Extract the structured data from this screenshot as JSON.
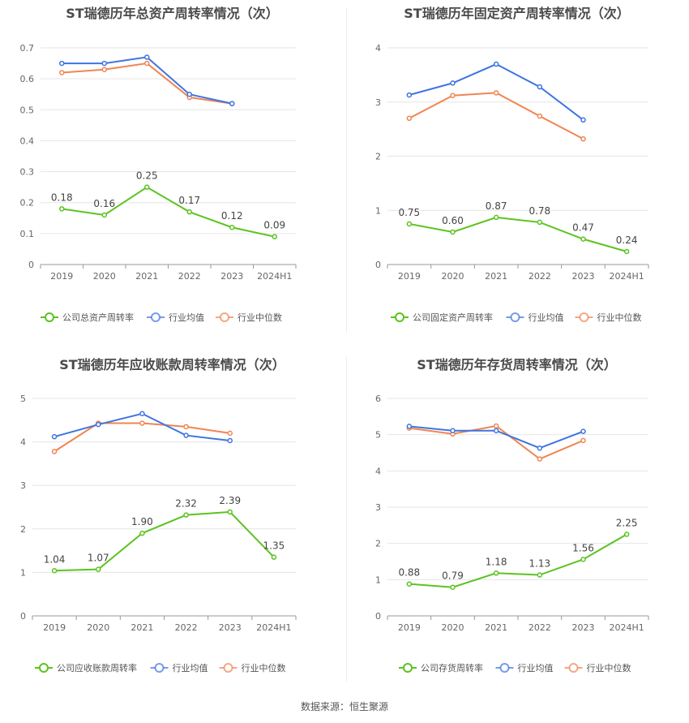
{
  "source": "数据来源：恒生聚源",
  "legend_labels": {
    "company_default": "",
    "avg": "行业均值",
    "median": "行业中位数"
  },
  "colors": {
    "company": "#5cc320",
    "avg": "#3f74e1",
    "median": "#f08552",
    "grid": "#e6e6e6",
    "axis": "#999999",
    "text": "#666666"
  },
  "chart_data": [
    {
      "type": "line",
      "title": "ST瑞德历年总资产周转率情况（次）",
      "x": [
        "2019",
        "2020",
        "2021",
        "2022",
        "2023",
        "2024H1"
      ],
      "yticks": [
        "0",
        "0.1",
        "0.2",
        "0.3",
        "0.4",
        "0.5",
        "0.6",
        "0.7"
      ],
      "ylim": [
        0,
        0.7
      ],
      "series": [
        {
          "name": "公司总资产周转率",
          "role": "company",
          "values": [
            0.18,
            0.16,
            0.25,
            0.17,
            0.12,
            0.09
          ],
          "labels": [
            "0.18",
            "0.16",
            "0.25",
            "0.17",
            "0.12",
            "0.09"
          ]
        },
        {
          "name": "行业均值",
          "role": "avg",
          "values": [
            0.65,
            0.65,
            0.67,
            0.55,
            0.52,
            null
          ]
        },
        {
          "name": "行业中位数",
          "role": "median",
          "values": [
            0.62,
            0.63,
            0.65,
            0.54,
            0.52,
            null
          ]
        }
      ]
    },
    {
      "type": "line",
      "title": "ST瑞德历年固定资产周转率情况（次）",
      "x": [
        "2019",
        "2020",
        "2021",
        "2022",
        "2023",
        "2024H1"
      ],
      "yticks": [
        "0",
        "1",
        "2",
        "3",
        "4"
      ],
      "ylim": [
        0,
        4
      ],
      "series": [
        {
          "name": "公司固定资产周转率",
          "role": "company",
          "values": [
            0.75,
            0.6,
            0.87,
            0.78,
            0.47,
            0.24
          ],
          "labels": [
            "0.75",
            "0.60",
            "0.87",
            "0.78",
            "0.47",
            "0.24"
          ]
        },
        {
          "name": "行业均值",
          "role": "avg",
          "values": [
            3.13,
            3.35,
            3.7,
            3.28,
            2.67,
            null
          ]
        },
        {
          "name": "行业中位数",
          "role": "median",
          "values": [
            2.7,
            3.12,
            3.17,
            2.74,
            2.32,
            null
          ]
        }
      ]
    },
    {
      "type": "line",
      "title": "ST瑞德历年应收账款周转率情况（次）",
      "x": [
        "2019",
        "2020",
        "2021",
        "2022",
        "2023",
        "2024H1"
      ],
      "yticks": [
        "0",
        "1",
        "2",
        "3",
        "4",
        "5"
      ],
      "ylim": [
        0,
        5
      ],
      "series": [
        {
          "name": "公司应收账款周转率",
          "role": "company",
          "values": [
            1.04,
            1.07,
            1.9,
            2.32,
            2.39,
            1.35
          ],
          "labels": [
            "1.04",
            "1.07",
            "1.90",
            "2.32",
            "2.39",
            "1.35"
          ]
        },
        {
          "name": "行业均值",
          "role": "avg",
          "values": [
            4.12,
            4.4,
            4.65,
            4.15,
            4.03,
            null
          ]
        },
        {
          "name": "行业中位数",
          "role": "median",
          "values": [
            3.78,
            4.43,
            4.43,
            4.35,
            4.2,
            null
          ]
        }
      ]
    },
    {
      "type": "line",
      "title": "ST瑞德历年存货周转率情况（次）",
      "x": [
        "2019",
        "2020",
        "2021",
        "2022",
        "2023",
        "2024H1"
      ],
      "yticks": [
        "0",
        "1",
        "2",
        "3",
        "4",
        "5",
        "6"
      ],
      "ylim": [
        0,
        6
      ],
      "series": [
        {
          "name": "公司存货周转率",
          "role": "company",
          "values": [
            0.88,
            0.79,
            1.18,
            1.13,
            1.56,
            2.25
          ],
          "labels": [
            "0.88",
            "0.79",
            "1.18",
            "1.13",
            "1.56",
            "2.25"
          ]
        },
        {
          "name": "行业均值",
          "role": "avg",
          "values": [
            5.23,
            5.11,
            5.11,
            4.63,
            5.09,
            null
          ]
        },
        {
          "name": "行业中位数",
          "role": "median",
          "values": [
            5.18,
            5.02,
            5.24,
            4.33,
            4.84,
            null
          ]
        }
      ]
    }
  ]
}
